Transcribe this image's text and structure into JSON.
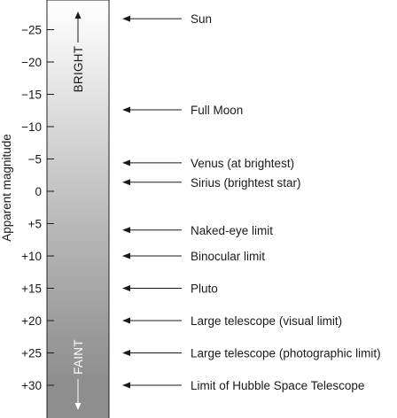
{
  "diagram": {
    "axis_label": "Apparent magnitude",
    "bar_top_label": "BRIGHT",
    "bar_bottom_label": "FAINT",
    "ticks": [
      {
        "value": -25,
        "label": "−25"
      },
      {
        "value": -20,
        "label": "−20"
      },
      {
        "value": -15,
        "label": "−15"
      },
      {
        "value": -10,
        "label": "−10"
      },
      {
        "value": -5,
        "label": "−5"
      },
      {
        "value": 0,
        "label": "0"
      },
      {
        "value": 5,
        "label": "+5"
      },
      {
        "value": 10,
        "label": "+10"
      },
      {
        "value": 15,
        "label": "+15"
      },
      {
        "value": 20,
        "label": "+20"
      },
      {
        "value": 25,
        "label": "+25"
      },
      {
        "value": 30,
        "label": "+30"
      }
    ],
    "objects": [
      {
        "magnitude": -26.7,
        "label": "Sun"
      },
      {
        "magnitude": -12.6,
        "label": "Full Moon"
      },
      {
        "magnitude": -4.4,
        "label": "Venus (at brightest)"
      },
      {
        "magnitude": -1.4,
        "label": "Sirius (brightest star)"
      },
      {
        "magnitude": 6,
        "label": "Naked-eye limit"
      },
      {
        "magnitude": 10,
        "label": "Binocular limit"
      },
      {
        "magnitude": 15,
        "label": "Pluto"
      },
      {
        "magnitude": 20,
        "label": "Large telescope (visual limit)"
      },
      {
        "magnitude": 25,
        "label": "Large telescope (photographic limit)"
      },
      {
        "magnitude": 30,
        "label": "Limit of Hubble Space Telescope"
      }
    ]
  }
}
